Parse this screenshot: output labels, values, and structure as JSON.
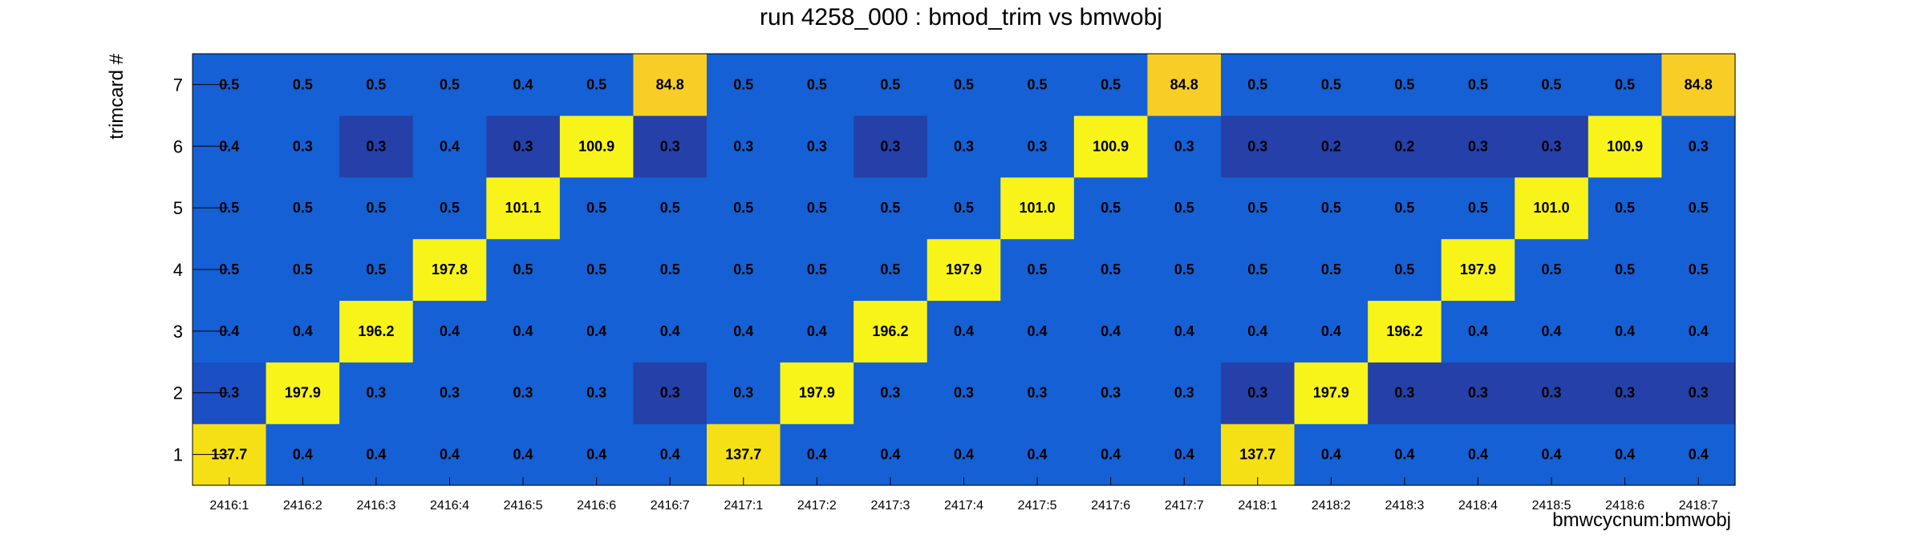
{
  "chart_data": {
    "type": "heatmap",
    "title": "run 4258_000 : bmod_trim vs bmwobj",
    "xlabel": "bmwcycnum:bmwobj",
    "ylabel": "trimcard #",
    "x_categories": [
      "2416:1",
      "2416:2",
      "2416:3",
      "2416:4",
      "2416:5",
      "2416:6",
      "2416:7",
      "2417:1",
      "2417:2",
      "2417:3",
      "2417:4",
      "2417:5",
      "2417:6",
      "2417:7",
      "2418:1",
      "2418:2",
      "2418:3",
      "2418:4",
      "2418:5",
      "2418:6",
      "2418:7"
    ],
    "y_categories": [
      "1",
      "2",
      "3",
      "4",
      "5",
      "6",
      "7"
    ],
    "values": [
      [
        "137.7",
        "0.4",
        "0.4",
        "0.4",
        "0.4",
        "0.4",
        "0.4",
        "137.7",
        "0.4",
        "0.4",
        "0.4",
        "0.4",
        "0.4",
        "0.4",
        "137.7",
        "0.4",
        "0.4",
        "0.4",
        "0.4",
        "0.4",
        "0.4"
      ],
      [
        "0.3",
        "197.9",
        "0.3",
        "0.3",
        "0.3",
        "0.3",
        "0.3",
        "0.3",
        "197.9",
        "0.3",
        "0.3",
        "0.3",
        "0.3",
        "0.3",
        "0.3",
        "197.9",
        "0.3",
        "0.3",
        "0.3",
        "0.3",
        "0.3"
      ],
      [
        "0.4",
        "0.4",
        "196.2",
        "0.4",
        "0.4",
        "0.4",
        "0.4",
        "0.4",
        "0.4",
        "196.2",
        "0.4",
        "0.4",
        "0.4",
        "0.4",
        "0.4",
        "0.4",
        "196.2",
        "0.4",
        "0.4",
        "0.4",
        "0.4"
      ],
      [
        "0.5",
        "0.5",
        "0.5",
        "197.8",
        "0.5",
        "0.5",
        "0.5",
        "0.5",
        "0.5",
        "0.5",
        "197.9",
        "0.5",
        "0.5",
        "0.5",
        "0.5",
        "0.5",
        "0.5",
        "197.9",
        "0.5",
        "0.5",
        "0.5"
      ],
      [
        "0.5",
        "0.5",
        "0.5",
        "0.5",
        "101.1",
        "0.5",
        "0.5",
        "0.5",
        "0.5",
        "0.5",
        "0.5",
        "101.0",
        "0.5",
        "0.5",
        "0.5",
        "0.5",
        "0.5",
        "0.5",
        "101.0",
        "0.5",
        "0.5"
      ],
      [
        "0.4",
        "0.3",
        "0.3",
        "0.4",
        "0.3",
        "100.9",
        "0.3",
        "0.3",
        "0.3",
        "0.3",
        "0.3",
        "0.3",
        "100.9",
        "0.3",
        "0.3",
        "0.2",
        "0.2",
        "0.3",
        "0.3",
        "100.9",
        "0.3"
      ],
      [
        "0.5",
        "0.5",
        "0.5",
        "0.5",
        "0.4",
        "0.5",
        "84.8",
        "0.5",
        "0.5",
        "0.5",
        "0.5",
        "0.5",
        "0.5",
        "84.8",
        "0.5",
        "0.5",
        "0.5",
        "0.5",
        "0.5",
        "0.5",
        "84.8"
      ]
    ],
    "colors": [
      [
        "#F5E015",
        "#1560D4",
        "#1560D4",
        "#1560D4",
        "#1560D4",
        "#1560D4",
        "#1560D4",
        "#F5E015",
        "#1560D4",
        "#1560D4",
        "#1560D4",
        "#1560D4",
        "#1560D4",
        "#1560D4",
        "#F5E015",
        "#1560D4",
        "#1560D4",
        "#1560D4",
        "#1560D4",
        "#1560D4",
        "#1560D4"
      ],
      [
        "#1B4FC4",
        "#F8F41A",
        "#1560D4",
        "#1560D4",
        "#1560D4",
        "#1560D4",
        "#2540A8",
        "#1560D4",
        "#F8F41A",
        "#1560D4",
        "#1560D4",
        "#1560D4",
        "#1560D4",
        "#1560D4",
        "#2540A8",
        "#F8F41A",
        "#2540A8",
        "#2540A8",
        "#2540A8",
        "#2540A8",
        "#2540A8"
      ],
      [
        "#1560D4",
        "#1560D4",
        "#F8F41A",
        "#1560D4",
        "#1560D4",
        "#1560D4",
        "#1560D4",
        "#1560D4",
        "#1560D4",
        "#F8F41A",
        "#1560D4",
        "#1560D4",
        "#1560D4",
        "#1560D4",
        "#1560D4",
        "#1560D4",
        "#F8F41A",
        "#1560D4",
        "#1560D4",
        "#1560D4",
        "#1560D4"
      ],
      [
        "#1560D4",
        "#1560D4",
        "#1560D4",
        "#F8F41A",
        "#1560D4",
        "#1560D4",
        "#1560D4",
        "#1560D4",
        "#1560D4",
        "#1560D4",
        "#F8F41A",
        "#1560D4",
        "#1560D4",
        "#1560D4",
        "#1560D4",
        "#1560D4",
        "#1560D4",
        "#F8F41A",
        "#1560D4",
        "#1560D4",
        "#1560D4"
      ],
      [
        "#1560D4",
        "#1560D4",
        "#1560D4",
        "#1560D4",
        "#F8F41A",
        "#1560D4",
        "#1560D4",
        "#1560D4",
        "#1560D4",
        "#1560D4",
        "#1560D4",
        "#F8F41A",
        "#1560D4",
        "#1560D4",
        "#1560D4",
        "#1560D4",
        "#1560D4",
        "#1560D4",
        "#F8F41A",
        "#1560D4",
        "#1560D4"
      ],
      [
        "#1560D4",
        "#1560D4",
        "#2540A8",
        "#1560D4",
        "#2540A8",
        "#F8F41A",
        "#2540A8",
        "#1560D4",
        "#1560D4",
        "#2540A8",
        "#1560D4",
        "#1560D4",
        "#F8F41A",
        "#1560D4",
        "#2540A8",
        "#2540A8",
        "#2540A8",
        "#2540A8",
        "#2540A8",
        "#F8F41A",
        "#1560D4"
      ],
      [
        "#1560D4",
        "#1560D4",
        "#1560D4",
        "#1560D4",
        "#1560D4",
        "#1560D4",
        "#F8CE26",
        "#1560D4",
        "#1560D4",
        "#1560D4",
        "#1560D4",
        "#1560D4",
        "#1560D4",
        "#F8CE26",
        "#1560D4",
        "#1560D4",
        "#1560D4",
        "#1560D4",
        "#1560D4",
        "#1560D4",
        "#F8CE26"
      ]
    ],
    "legend": "none",
    "grid": false
  }
}
